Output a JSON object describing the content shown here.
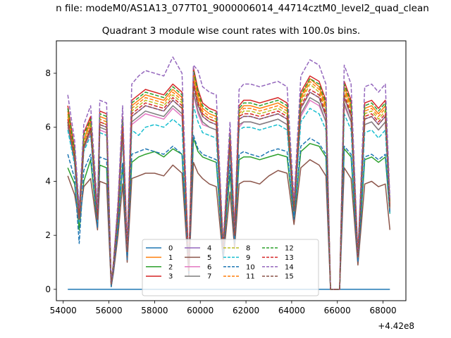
{
  "chart_data": {
    "type": "line",
    "suptitle": "n file: modeM0/AS1A13_077T01_9000006014_44714cztM0_level2_quad_clean",
    "title": "Quadrant 3 module wise count rates with 100.0s bins.",
    "xlabel": "",
    "ylabel": "",
    "x_offset_label": "+4.42e8",
    "xlim": [
      53700,
      69000
    ],
    "ylim": [
      -0.42,
      9.2
    ],
    "xticks": [
      54000,
      56000,
      58000,
      60000,
      62000,
      64000,
      66000,
      68000
    ],
    "xtick_labels": [
      "54000",
      "56000",
      "58000",
      "60000",
      "62000",
      "64000",
      "66000",
      "68000"
    ],
    "yticks": [
      0,
      2,
      4,
      6,
      8
    ],
    "ytick_labels": [
      "0",
      "2",
      "4",
      "6",
      "8"
    ],
    "x": [
      54200,
      54500,
      54700,
      54900,
      55200,
      55500,
      55600,
      55900,
      56100,
      56200,
      56400,
      56600,
      56800,
      57000,
      57300,
      57600,
      58000,
      58400,
      58800,
      59200,
      59500,
      59700,
      59900,
      60100,
      60400,
      60700,
      61000,
      61300,
      61500,
      61700,
      61900,
      62200,
      62600,
      63000,
      63400,
      63800,
      64100,
      64400,
      64800,
      65200,
      65500,
      65700,
      65900,
      66100,
      66300,
      66600,
      66900,
      67200,
      67500,
      67800,
      68100,
      68300
    ],
    "grid": false,
    "legend_position": "bottom-center",
    "legend_columns": 4,
    "series": [
      {
        "name": "0",
        "color": "#1f77b4",
        "dash": "solid",
        "values": [
          0,
          0,
          0,
          0,
          0,
          0,
          0,
          0,
          0,
          0,
          0,
          0,
          0,
          0,
          0,
          0,
          0,
          0,
          0,
          0,
          0,
          0,
          0,
          0,
          0,
          0,
          0,
          0,
          0,
          0,
          0,
          0,
          0,
          0,
          0,
          0,
          0,
          0,
          0,
          0,
          0,
          0,
          0,
          0,
          0,
          0,
          0,
          0,
          0,
          0,
          0,
          0
        ]
      },
      {
        "name": "1",
        "color": "#ff7f0e",
        "dash": "solid",
        "values": [
          6.6,
          5.0,
          2.7,
          5.5,
          6.3,
          2.7,
          6.4,
          6.3,
          0.2,
          0.9,
          3.0,
          6.2,
          1.4,
          6.8,
          7.0,
          7.2,
          7.1,
          7.0,
          7.4,
          7.1,
          0.7,
          8.0,
          7.2,
          6.7,
          6.5,
          6.4,
          1.5,
          5.6,
          2.1,
          6.6,
          6.8,
          6.8,
          6.7,
          6.8,
          6.9,
          6.7,
          3.0,
          7.1,
          7.8,
          7.5,
          6.8,
          0,
          0,
          0,
          7.5,
          6.8,
          1.2,
          6.7,
          6.8,
          6.5,
          6.8,
          3.1
        ]
      },
      {
        "name": "2",
        "color": "#2ca02c",
        "dash": "solid",
        "values": [
          4.5,
          3.9,
          2.2,
          4.0,
          4.8,
          2.3,
          4.6,
          4.5,
          0.1,
          0.7,
          2.4,
          4.6,
          1.2,
          4.7,
          4.9,
          5.0,
          5.1,
          4.9,
          5.2,
          5.0,
          0.6,
          5.6,
          5.1,
          4.9,
          4.8,
          4.7,
          1.3,
          4.3,
          1.8,
          4.8,
          4.9,
          4.9,
          4.8,
          4.9,
          5.0,
          4.9,
          2.6,
          5.1,
          5.4,
          5.3,
          4.9,
          0,
          0,
          0,
          5.2,
          4.9,
          1.0,
          4.8,
          4.9,
          4.7,
          4.9,
          2.8
        ]
      },
      {
        "name": "3",
        "color": "#d62728",
        "dash": "solid",
        "values": [
          6.8,
          5.2,
          2.8,
          5.8,
          6.4,
          2.8,
          6.6,
          6.5,
          0.2,
          1.0,
          3.1,
          6.4,
          1.5,
          7.0,
          7.2,
          7.4,
          7.3,
          7.2,
          7.6,
          7.3,
          0.8,
          8.2,
          7.4,
          6.9,
          6.7,
          6.6,
          1.6,
          5.8,
          2.2,
          6.8,
          7.0,
          7.0,
          6.9,
          7.0,
          7.1,
          6.9,
          3.1,
          7.3,
          7.9,
          7.7,
          7.0,
          0,
          0,
          0,
          7.7,
          7.0,
          1.3,
          6.9,
          7.0,
          6.7,
          7.0,
          3.2
        ]
      },
      {
        "name": "4",
        "color": "#9467bd",
        "dash": "solid",
        "values": [
          6.2,
          4.8,
          2.6,
          5.3,
          6.0,
          2.6,
          6.1,
          6.0,
          0.2,
          0.9,
          2.9,
          5.9,
          1.4,
          6.4,
          6.6,
          6.8,
          6.7,
          6.6,
          7.0,
          6.7,
          0.7,
          7.6,
          6.8,
          6.4,
          6.2,
          6.1,
          1.5,
          5.4,
          2.0,
          6.3,
          6.4,
          6.4,
          6.3,
          6.4,
          6.5,
          6.3,
          2.9,
          6.7,
          7.3,
          7.1,
          6.4,
          0,
          0,
          0,
          7.1,
          6.4,
          1.2,
          6.3,
          6.4,
          6.1,
          6.4,
          3.0
        ]
      },
      {
        "name": "5",
        "color": "#8c564b",
        "dash": "solid",
        "values": [
          4.2,
          3.5,
          2.5,
          3.8,
          4.1,
          2.2,
          4.0,
          3.9,
          0.1,
          0.6,
          2.0,
          3.9,
          1.0,
          4.1,
          4.2,
          4.3,
          4.3,
          4.2,
          4.6,
          4.3,
          0.5,
          4.7,
          4.3,
          4.1,
          3.9,
          3.8,
          1.1,
          3.6,
          1.5,
          3.9,
          4.0,
          4.0,
          3.9,
          4.2,
          4.4,
          4.3,
          2.4,
          4.5,
          4.8,
          4.6,
          4.2,
          0,
          0,
          0,
          4.5,
          4.1,
          0.9,
          3.9,
          4.0,
          3.8,
          3.9,
          2.2
        ]
      },
      {
        "name": "6",
        "color": "#e377c2",
        "dash": "solid",
        "values": [
          6.0,
          4.7,
          2.5,
          5.2,
          5.8,
          2.5,
          5.9,
          5.8,
          0.2,
          0.8,
          2.8,
          5.7,
          1.3,
          6.1,
          6.3,
          6.5,
          6.4,
          6.3,
          6.7,
          6.4,
          0.7,
          7.2,
          6.5,
          6.1,
          6.0,
          5.9,
          1.4,
          5.2,
          1.9,
          6.0,
          6.2,
          6.2,
          6.1,
          6.2,
          6.3,
          6.1,
          2.8,
          6.4,
          7.0,
          6.8,
          6.2,
          0,
          0,
          0,
          6.8,
          6.2,
          1.1,
          6.1,
          6.2,
          5.9,
          6.2,
          2.9
        ]
      },
      {
        "name": "7",
        "color": "#7f7f7f",
        "dash": "solid",
        "values": [
          6.1,
          4.7,
          2.5,
          5.2,
          5.9,
          2.6,
          6.0,
          5.9,
          0.2,
          0.8,
          2.8,
          5.8,
          1.3,
          6.2,
          6.4,
          6.6,
          6.5,
          6.4,
          6.8,
          6.5,
          0.7,
          7.3,
          6.6,
          6.2,
          6.0,
          5.9,
          1.4,
          5.3,
          1.9,
          6.1,
          6.2,
          6.2,
          6.1,
          6.2,
          6.3,
          6.1,
          2.8,
          6.5,
          7.1,
          6.9,
          6.2,
          0,
          0,
          0,
          6.9,
          6.2,
          1.1,
          6.1,
          6.2,
          5.9,
          6.2,
          2.9
        ]
      },
      {
        "name": "8",
        "color": "#bcbd22",
        "dash": "dashed",
        "values": [
          6.4,
          4.9,
          2.6,
          5.4,
          6.1,
          2.7,
          6.2,
          6.1,
          0.2,
          0.9,
          2.9,
          6.0,
          1.4,
          6.6,
          6.8,
          7.0,
          6.9,
          6.8,
          7.2,
          6.9,
          0.7,
          7.8,
          7.0,
          6.5,
          6.3,
          6.2,
          1.5,
          5.5,
          2.0,
          6.4,
          6.6,
          6.6,
          6.5,
          6.6,
          6.7,
          6.5,
          2.9,
          6.9,
          7.6,
          7.3,
          6.6,
          0,
          0,
          0,
          7.3,
          6.6,
          1.2,
          6.5,
          6.6,
          6.3,
          6.6,
          3.0
        ]
      },
      {
        "name": "9",
        "color": "#17becf",
        "dash": "dashed",
        "values": [
          5.9,
          4.6,
          2.5,
          5.1,
          5.7,
          2.5,
          5.8,
          5.7,
          0.2,
          0.8,
          2.7,
          5.6,
          1.3,
          5.9,
          5.7,
          6.0,
          6.1,
          6.0,
          6.3,
          6.0,
          0.7,
          6.8,
          6.2,
          5.8,
          5.7,
          5.6,
          1.4,
          5.1,
          1.9,
          5.9,
          6.0,
          6.0,
          5.9,
          6.0,
          6.1,
          5.9,
          2.7,
          6.2,
          6.7,
          6.5,
          5.9,
          0,
          0,
          0,
          6.5,
          5.9,
          1.1,
          5.8,
          5.9,
          5.6,
          5.9,
          2.8
        ]
      },
      {
        "name": "10",
        "color": "#1f77b4",
        "dash": "dashed",
        "values": [
          5.0,
          4.1,
          1.7,
          4.4,
          5.0,
          2.3,
          4.9,
          4.8,
          0.1,
          0.7,
          2.3,
          4.7,
          1.1,
          5.0,
          5.1,
          5.2,
          5.1,
          5.0,
          5.3,
          5.0,
          0.6,
          5.7,
          5.2,
          5.0,
          4.9,
          4.8,
          1.2,
          4.6,
          1.7,
          5.0,
          5.1,
          5.0,
          4.9,
          5.1,
          5.2,
          5.1,
          2.6,
          5.3,
          5.6,
          5.4,
          5.0,
          0,
          0,
          0,
          5.3,
          5.0,
          1.0,
          4.9,
          5.0,
          4.8,
          5.0,
          2.8
        ]
      },
      {
        "name": "11",
        "color": "#ff7f0e",
        "dash": "dashed",
        "values": [
          6.5,
          5.0,
          2.7,
          5.5,
          6.2,
          2.7,
          6.3,
          6.2,
          0.2,
          0.9,
          3.0,
          6.1,
          1.4,
          6.7,
          6.9,
          7.1,
          7.0,
          6.9,
          7.3,
          7.0,
          0.7,
          7.9,
          7.1,
          6.6,
          6.4,
          6.3,
          1.5,
          5.6,
          2.1,
          6.5,
          6.7,
          6.7,
          6.6,
          6.7,
          6.8,
          6.6,
          3.0,
          7.0,
          7.7,
          7.4,
          6.7,
          0,
          0,
          0,
          7.4,
          6.7,
          1.2,
          6.6,
          6.7,
          6.4,
          6.7,
          3.1
        ]
      },
      {
        "name": "12",
        "color": "#2ca02c",
        "dash": "dashed",
        "values": [
          6.7,
          5.1,
          2.8,
          5.7,
          6.3,
          2.8,
          6.5,
          6.4,
          0.2,
          1.0,
          3.0,
          6.3,
          1.5,
          6.9,
          7.1,
          7.3,
          7.2,
          7.1,
          7.5,
          7.2,
          0.8,
          8.1,
          7.3,
          6.8,
          6.6,
          6.5,
          1.6,
          5.7,
          2.1,
          6.7,
          6.9,
          6.9,
          6.8,
          6.9,
          7.0,
          6.8,
          3.0,
          7.2,
          7.8,
          7.6,
          6.9,
          0,
          0,
          0,
          7.6,
          6.9,
          1.2,
          6.8,
          6.9,
          6.6,
          6.9,
          3.1
        ]
      },
      {
        "name": "13",
        "color": "#d62728",
        "dash": "dashed",
        "values": [
          6.3,
          4.9,
          2.6,
          5.3,
          6.0,
          2.6,
          6.2,
          6.1,
          0.2,
          0.9,
          2.9,
          6.0,
          1.4,
          6.5,
          6.7,
          6.9,
          6.8,
          6.7,
          7.1,
          6.8,
          0.7,
          7.7,
          6.9,
          6.5,
          6.3,
          6.2,
          1.5,
          5.5,
          2.0,
          6.4,
          6.5,
          6.5,
          6.4,
          6.5,
          6.6,
          6.4,
          2.9,
          6.8,
          7.4,
          7.2,
          6.5,
          0,
          0,
          0,
          7.2,
          6.5,
          1.2,
          6.4,
          6.5,
          6.2,
          6.5,
          3.0
        ]
      },
      {
        "name": "14",
        "color": "#9467bd",
        "dash": "dashed",
        "values": [
          7.2,
          5.5,
          3.0,
          6.1,
          6.8,
          3.0,
          7.0,
          6.9,
          0.2,
          1.0,
          3.3,
          6.8,
          1.6,
          7.6,
          7.9,
          8.1,
          8.0,
          7.9,
          8.6,
          8.0,
          0.8,
          8.3,
          8.1,
          7.5,
          7.3,
          7.2,
          1.7,
          6.2,
          2.3,
          7.4,
          7.6,
          7.6,
          7.5,
          7.6,
          7.7,
          7.5,
          3.3,
          7.9,
          8.5,
          8.3,
          7.6,
          0,
          0,
          0,
          8.3,
          7.6,
          1.3,
          7.5,
          7.6,
          7.3,
          7.6,
          3.4
        ]
      },
      {
        "name": "15",
        "color": "#8c564b",
        "dash": "dashed",
        "values": [
          6.2,
          4.8,
          2.6,
          5.3,
          5.9,
          2.6,
          6.1,
          6.0,
          0.2,
          0.9,
          2.9,
          5.9,
          1.4,
          6.4,
          6.6,
          6.8,
          6.7,
          6.6,
          7.0,
          6.7,
          0.7,
          7.5,
          6.8,
          6.4,
          6.2,
          6.1,
          1.5,
          5.4,
          2.0,
          6.3,
          6.4,
          6.4,
          6.3,
          6.4,
          6.5,
          6.3,
          2.9,
          6.7,
          7.3,
          7.1,
          6.4,
          0,
          0,
          0,
          7.1,
          6.4,
          1.2,
          6.3,
          6.4,
          6.1,
          6.4,
          3.0
        ]
      }
    ]
  }
}
